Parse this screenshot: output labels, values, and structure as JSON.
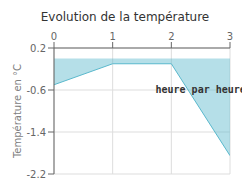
{
  "chart_data": {
    "type": "area",
    "title": "Evolution de la température",
    "ylabel": "Température en °C",
    "x": [
      0,
      1,
      2,
      3
    ],
    "values": [
      -0.5,
      -0.1,
      -0.1,
      -1.85
    ],
    "baseline": 0,
    "color": "#5ab8cc",
    "xlim": [
      0,
      3
    ],
    "ylim": [
      -2.2,
      0.2
    ],
    "xticks": [
      0,
      1,
      2,
      3
    ],
    "yticks": [
      0.2,
      -0.6,
      -1.4,
      -2.2
    ],
    "grid": true,
    "annotations": [
      {
        "text": "heure par heure",
        "x": 2.5,
        "y": -0.42
      }
    ]
  }
}
